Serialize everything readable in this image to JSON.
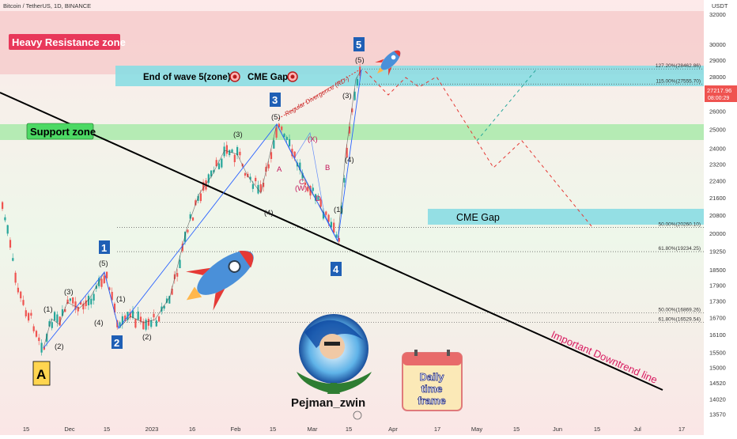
{
  "header": {
    "symbol": "Bitcoin / TetherUS, 1D, BINANCE",
    "currency": "USDT"
  },
  "price_badge": {
    "price": "27217.96",
    "countdown": "08:00:29"
  },
  "chart_data": {
    "type": "candlestick",
    "y_scale": "log",
    "ylim": [
      13200,
      33000
    ],
    "y_ticks": [
      32000,
      30000,
      29000,
      28000,
      27000,
      26000,
      25000,
      24000,
      23200,
      22400,
      21600,
      20800,
      20000,
      19250,
      18500,
      17900,
      17300,
      16700,
      16100,
      15500,
      15000,
      14520,
      14020,
      13570
    ],
    "x_ticks": [
      "15",
      "Dec",
      "15",
      "2023",
      "16",
      "Feb",
      "15",
      "Mar",
      "15",
      "Apr",
      "17",
      "May",
      "15",
      "Jun",
      "15",
      "Jul",
      "17"
    ],
    "current_price": 27217.96,
    "levels": [
      {
        "label": "127.20%(28462.86)",
        "price": 28462.86
      },
      {
        "label": "115.00%(27555.70)",
        "price": 27555.7
      },
      {
        "label": "50.00%(20260.10)",
        "price": 20260.1
      },
      {
        "label": "61.80%(19234.25)",
        "price": 19234.25
      },
      {
        "label": "50.00%(16869.26)",
        "price": 16869.26
      },
      {
        "label": "61.80%(16529.54)",
        "price": 16529.54
      }
    ],
    "zones": [
      {
        "label": "Heavy Resistance zone",
        "from": 28200,
        "to": 33000
      },
      {
        "label": "Support zone",
        "from": 24550,
        "to": 25350
      },
      {
        "label": "End of wave 5(zone)",
        "from": 27650,
        "to": 28650
      },
      {
        "label": "CME Gap",
        "from": 20300,
        "to": 21100
      }
    ],
    "wave_labels": [
      {
        "text": "A"
      },
      {
        "text": "1"
      },
      {
        "text": "2"
      },
      {
        "text": "3"
      },
      {
        "text": "4"
      },
      {
        "text": "5"
      }
    ],
    "sub_wave_labels": [
      "(1)",
      "(2)",
      "(3)",
      "(4)",
      "(5)",
      "(1)",
      "(2)",
      "(3)",
      "(4)",
      "(5)",
      "(1)",
      "(3)",
      "(4)",
      "(5)",
      "(X)",
      "A",
      "B",
      "C",
      "D",
      "(W)"
    ],
    "annotations": {
      "trendline": "Important Downtrend line",
      "divergence": "Regular Divergence (RD-)",
      "cme_gap_top": "CME Gap",
      "cme_gap_lower": "CME Gap",
      "brand": "Pejman_zwin",
      "calendar": [
        "Daily",
        "time",
        "frame"
      ]
    }
  },
  "colors": {
    "resistance_zone": "#f6cccc",
    "support_zone": "#aeeaae",
    "cyan_zone": "#89dde3",
    "wave_box": "#1f5fb5",
    "bull": "#26a69a",
    "bear": "#ef5350",
    "projection": "#e53935",
    "trendline": "#000000"
  }
}
